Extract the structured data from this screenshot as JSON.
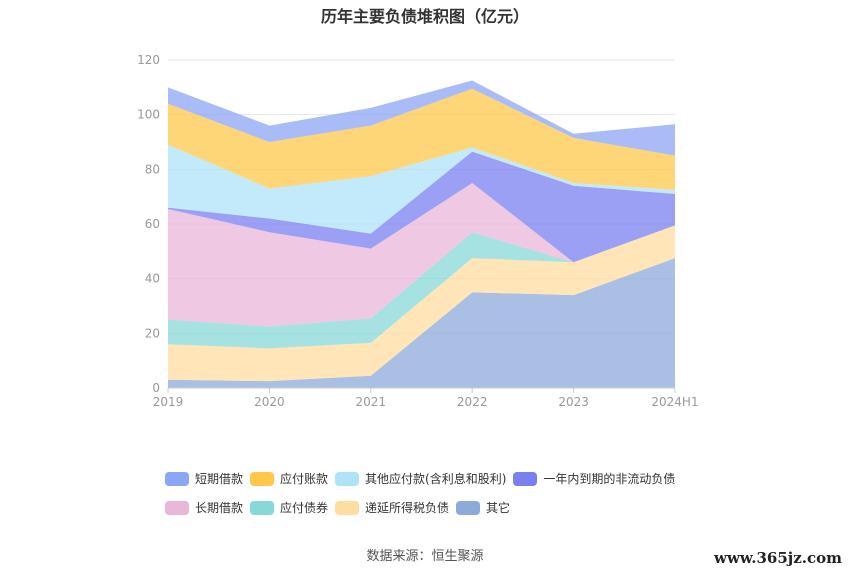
{
  "title": "历年主要负债堆积图（亿元）",
  "source": "数据来源：恒生聚源",
  "watermark": "www.365jz.com",
  "chart_data": {
    "type": "area",
    "stacked": true,
    "categories": [
      "2019",
      "2020",
      "2021",
      "2022",
      "2023",
      "2024H1"
    ],
    "ylim": [
      0,
      120
    ],
    "yticks": [
      0,
      20,
      40,
      60,
      80,
      100,
      120
    ],
    "grid": true,
    "legend_position": "bottom",
    "series": [
      {
        "name": "其它",
        "color": "#8eaadb",
        "values": [
          3,
          2.5,
          4.5,
          35,
          34,
          47.5
        ]
      },
      {
        "name": "递延所得税负债",
        "color": "#ffdca0",
        "values": [
          13,
          12,
          12,
          12.5,
          12,
          12
        ]
      },
      {
        "name": "应付债券",
        "color": "#88d8d8",
        "values": [
          9,
          8,
          9,
          9.5,
          0,
          0
        ]
      },
      {
        "name": "长期借款",
        "color": "#eab6da",
        "values": [
          40.5,
          34.5,
          25.5,
          18,
          0,
          0
        ]
      },
      {
        "name": "一年内到期的非流动负债",
        "color": "#7b80f0",
        "values": [
          0.5,
          5,
          5.5,
          11.5,
          28,
          11.5
        ]
      },
      {
        "name": "其他应付款(含利息和股利)",
        "color": "#aee3f8",
        "values": [
          23,
          11,
          21,
          1.5,
          1,
          1.5
        ]
      },
      {
        "name": "应付账款",
        "color": "#ffc84a",
        "values": [
          15,
          17,
          18.5,
          21.5,
          16.5,
          12.5
        ]
      },
      {
        "name": "短期借款",
        "color": "#8ca5f5",
        "values": [
          6,
          6,
          6.5,
          3,
          1.5,
          11.5
        ]
      }
    ],
    "legend": [
      {
        "name": "短期借款",
        "color": "#8ca5f5"
      },
      {
        "name": "应付账款",
        "color": "#ffc84a"
      },
      {
        "name": "其他应付款(含利息和股利)",
        "color": "#aee3f8"
      },
      {
        "name": "一年内到期的非流动负债",
        "color": "#7b80f0"
      },
      {
        "name": "长期借款",
        "color": "#eab6da"
      },
      {
        "name": "应付债券",
        "color": "#88d8d8"
      },
      {
        "name": "递延所得税负债",
        "color": "#ffdca0"
      },
      {
        "name": "其它",
        "color": "#8eaadb"
      }
    ]
  }
}
